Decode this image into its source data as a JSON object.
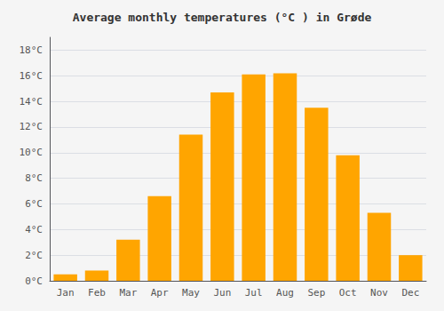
{
  "chart_data": {
    "type": "bar",
    "title": "Average monthly temperatures (°C ) in Grøde",
    "categories": [
      "Jan",
      "Feb",
      "Mar",
      "Apr",
      "May",
      "Jun",
      "Jul",
      "Aug",
      "Sep",
      "Oct",
      "Nov",
      "Dec"
    ],
    "values": [
      0.5,
      0.8,
      3.2,
      6.6,
      11.4,
      14.7,
      16.1,
      16.2,
      13.5,
      9.8,
      5.3,
      2.0
    ],
    "color": "#FFA500",
    "ylim": [
      0,
      19
    ],
    "yticks": [
      {
        "value": 0,
        "label": "0°C"
      },
      {
        "value": 2,
        "label": "2°C"
      },
      {
        "value": 4,
        "label": "4°C"
      },
      {
        "value": 6,
        "label": "6°C"
      },
      {
        "value": 8,
        "label": "8°C"
      },
      {
        "value": 10,
        "label": "10°C"
      },
      {
        "value": 12,
        "label": "12°C"
      },
      {
        "value": 14,
        "label": "14°C"
      },
      {
        "value": 16,
        "label": "16°C"
      },
      {
        "value": 18,
        "label": "18°C"
      }
    ],
    "grid": true
  }
}
